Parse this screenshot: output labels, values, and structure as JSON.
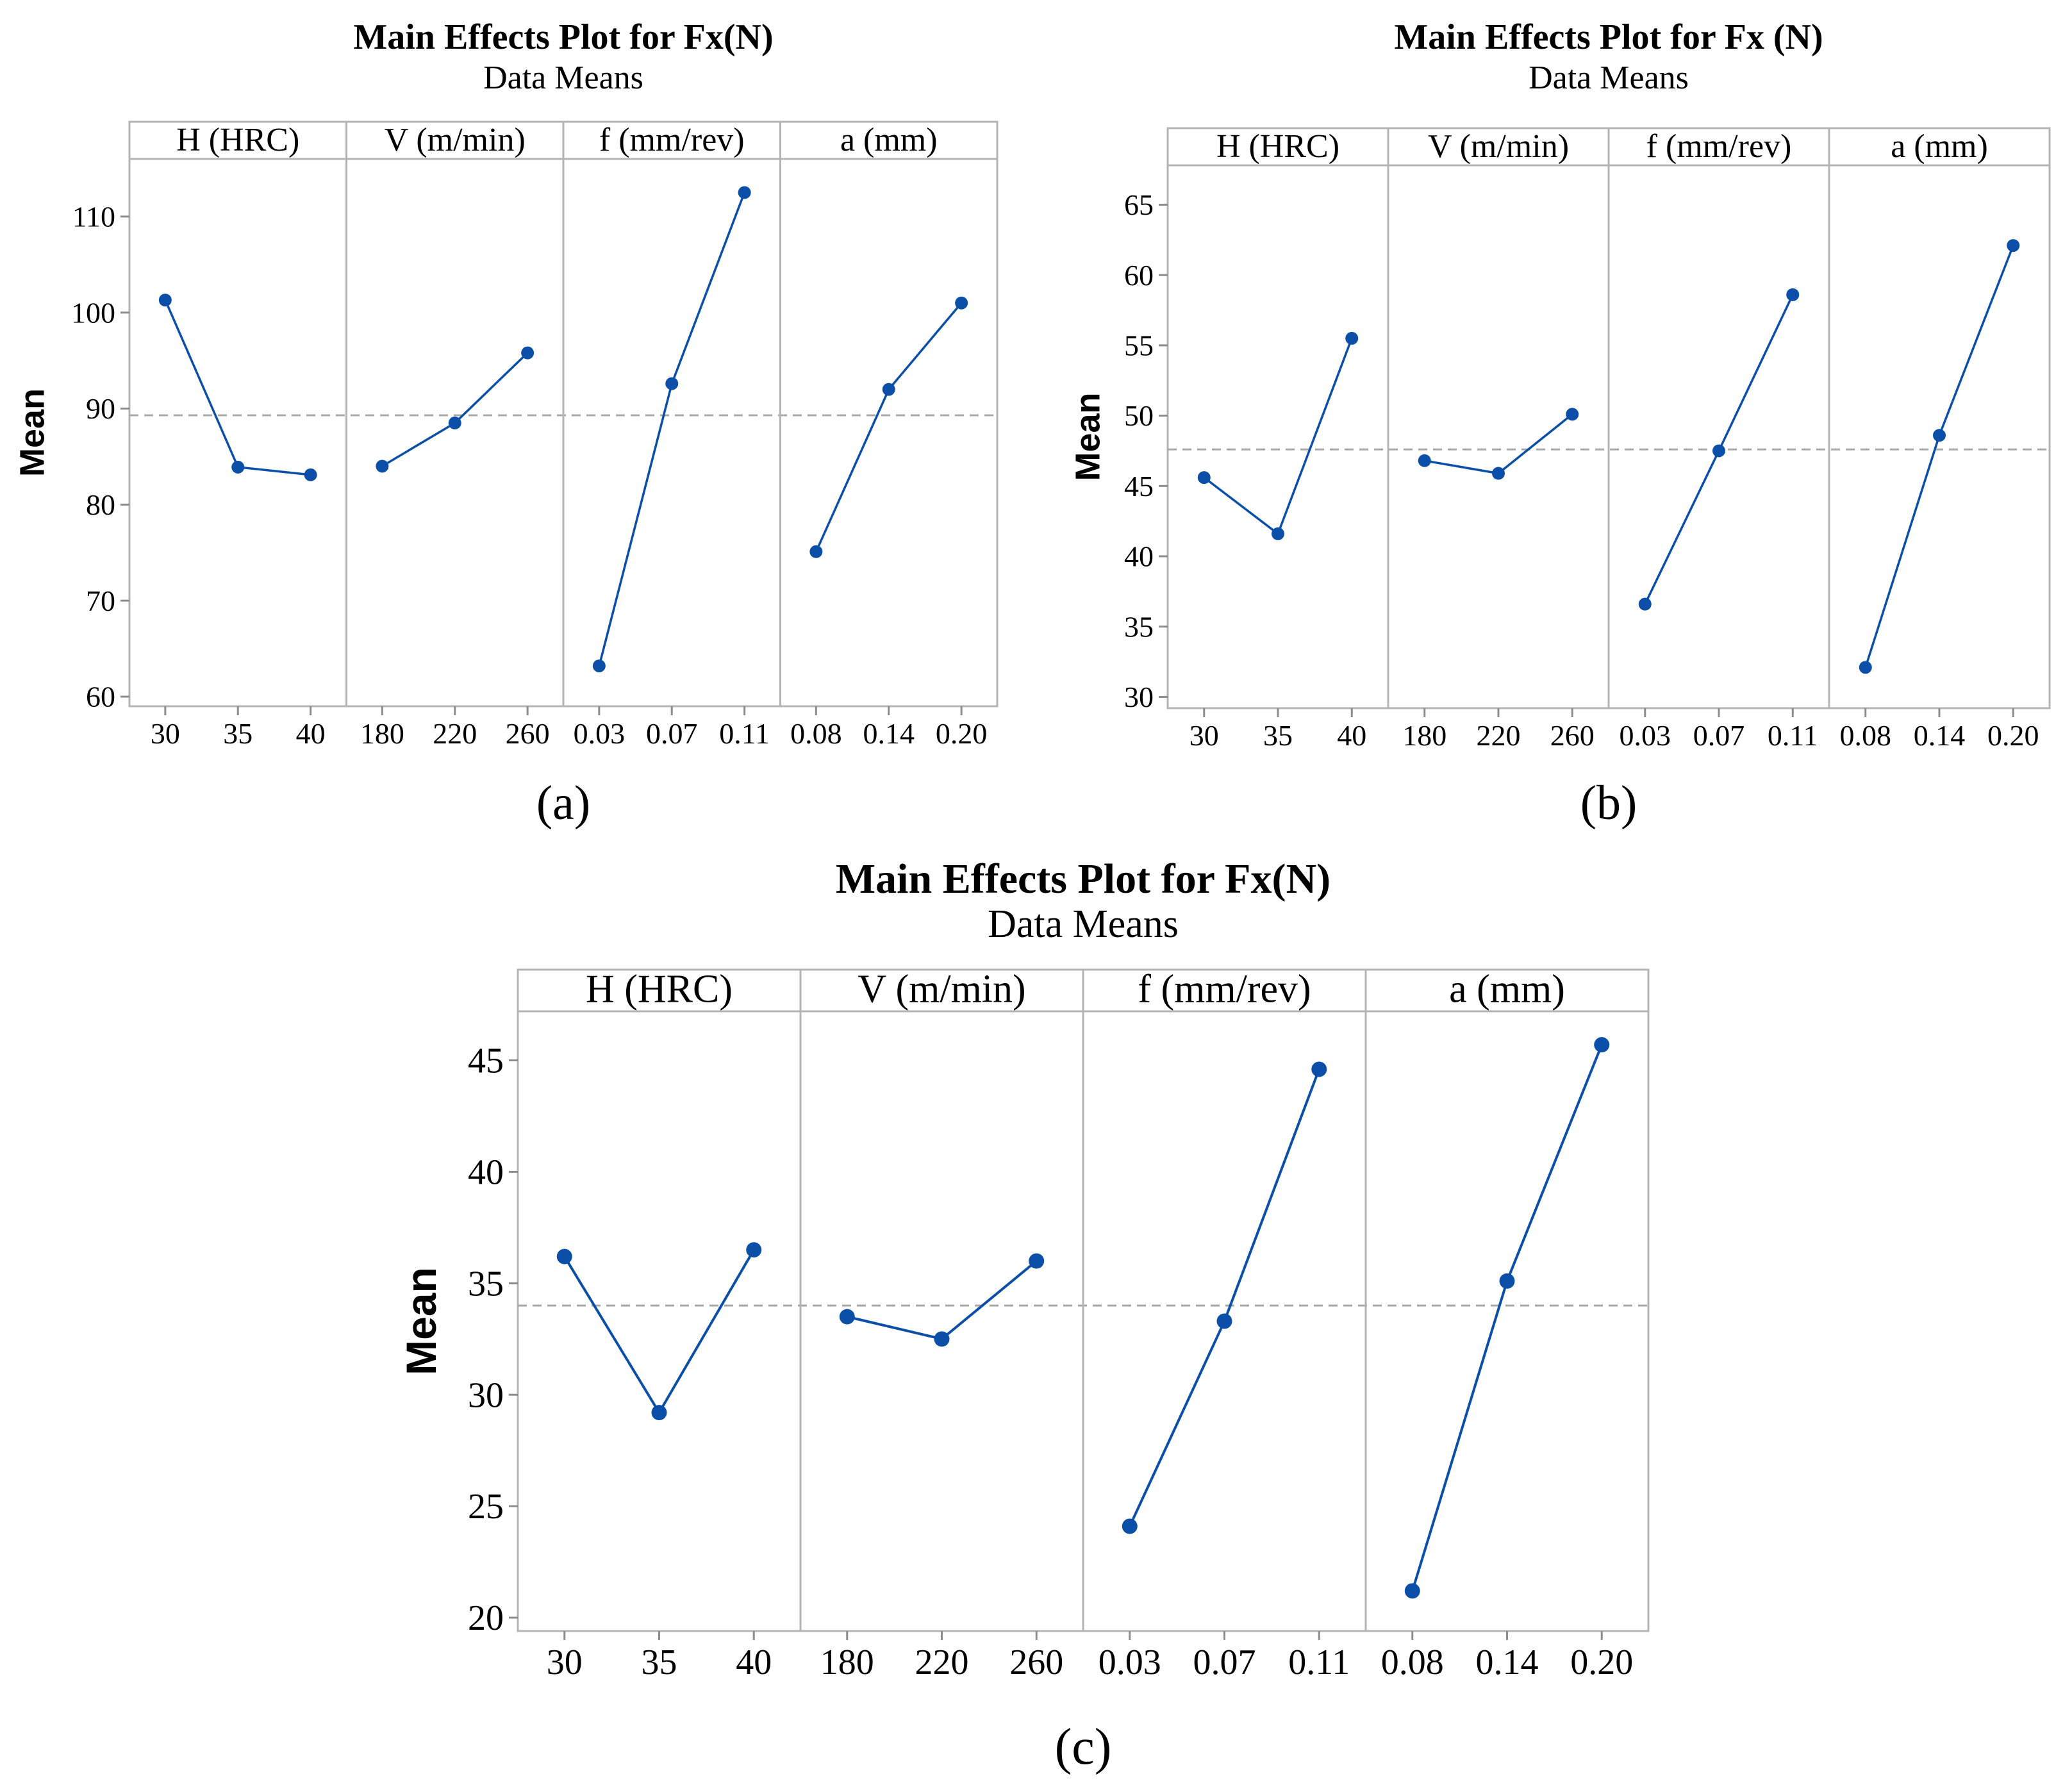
{
  "colors": {
    "series": "#0b4fa8",
    "frame": "#b4b4b4",
    "mean_line": "#a8a8a8"
  },
  "chart_data": [
    {
      "id": "a",
      "type": "line",
      "caption": "(a)",
      "title": "Main Effects Plot for Fx(N)",
      "subtitle": "Data Means",
      "ylabel": "Mean",
      "ylim": [
        59,
        116
      ],
      "yticks": [
        "60",
        "70",
        "80",
        "90",
        "100",
        "110"
      ],
      "ytick_values": [
        60,
        70,
        80,
        90,
        100,
        110
      ],
      "grand_mean": 89.3,
      "panels": [
        {
          "label": "H (HRC)",
          "categories": [
            "30",
            "35",
            "40"
          ],
          "values": [
            101.3,
            83.9,
            83.1
          ]
        },
        {
          "label": "V (m/min)",
          "categories": [
            "180",
            "220",
            "260"
          ],
          "values": [
            84.0,
            88.5,
            95.8
          ]
        },
        {
          "label": "f (mm/rev)",
          "categories": [
            "0.03",
            "0.07",
            "0.11"
          ],
          "values": [
            63.2,
            92.6,
            112.5
          ]
        },
        {
          "label": "a (mm)",
          "categories": [
            "0.08",
            "0.14",
            "0.20"
          ],
          "values": [
            75.1,
            92.0,
            101.0
          ]
        }
      ]
    },
    {
      "id": "b",
      "type": "line",
      "caption": "(b)",
      "title": "Main Effects Plot for Fx (N)",
      "subtitle": "Data Means",
      "ylabel": "Mean",
      "ylim": [
        29.2,
        67.8
      ],
      "yticks": [
        "30",
        "35",
        "40",
        "45",
        "50",
        "55",
        "60",
        "65"
      ],
      "ytick_values": [
        30,
        35,
        40,
        45,
        50,
        55,
        60,
        65
      ],
      "grand_mean": 47.6,
      "panels": [
        {
          "label": "H (HRC)",
          "categories": [
            "30",
            "35",
            "40"
          ],
          "values": [
            45.6,
            41.6,
            55.5
          ]
        },
        {
          "label": "V (m/min)",
          "categories": [
            "180",
            "220",
            "260"
          ],
          "values": [
            46.8,
            45.9,
            50.1
          ]
        },
        {
          "label": "f (mm/rev)",
          "categories": [
            "0.03",
            "0.07",
            "0.11"
          ],
          "values": [
            36.6,
            47.5,
            58.6
          ]
        },
        {
          "label": "a (mm)",
          "categories": [
            "0.08",
            "0.14",
            "0.20"
          ],
          "values": [
            32.1,
            48.6,
            62.1
          ]
        }
      ]
    },
    {
      "id": "c",
      "type": "line",
      "caption": "(c)",
      "title": "Main Effects Plot for Fx(N)",
      "subtitle": "Data Means",
      "ylabel": "Mean",
      "ylim": [
        19.4,
        47.2
      ],
      "yticks": [
        "20",
        "25",
        "30",
        "35",
        "40",
        "45"
      ],
      "ytick_values": [
        20,
        25,
        30,
        35,
        40,
        45
      ],
      "grand_mean": 34.0,
      "panels": [
        {
          "label": "H (HRC)",
          "categories": [
            "30",
            "35",
            "40"
          ],
          "values": [
            36.2,
            29.2,
            36.5
          ]
        },
        {
          "label": "V (m/min)",
          "categories": [
            "180",
            "220",
            "260"
          ],
          "values": [
            33.5,
            32.5,
            36.0
          ]
        },
        {
          "label": "f (mm/rev)",
          "categories": [
            "0.03",
            "0.07",
            "0.11"
          ],
          "values": [
            24.1,
            33.3,
            44.6
          ]
        },
        {
          "label": "a (mm)",
          "categories": [
            "0.08",
            "0.14",
            "0.20"
          ],
          "values": [
            21.2,
            35.1,
            45.7
          ]
        }
      ]
    }
  ]
}
